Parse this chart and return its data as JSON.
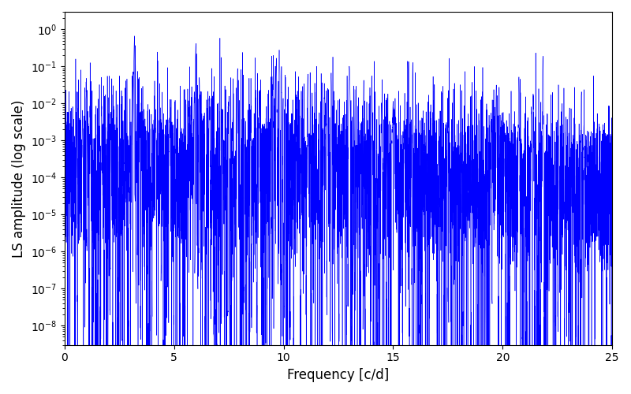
{
  "title": "",
  "xlabel": "Frequency [c/d]",
  "ylabel": "LS amplitude (log scale)",
  "xlim": [
    0,
    25
  ],
  "ylim_low": 3e-09,
  "ylim_high": 3.0,
  "line_color": "#0000ff",
  "line_width": 0.4,
  "background_color": "#ffffff",
  "freq_min": 0.0,
  "freq_max": 25.0,
  "n_points": 8000,
  "seed": 137
}
